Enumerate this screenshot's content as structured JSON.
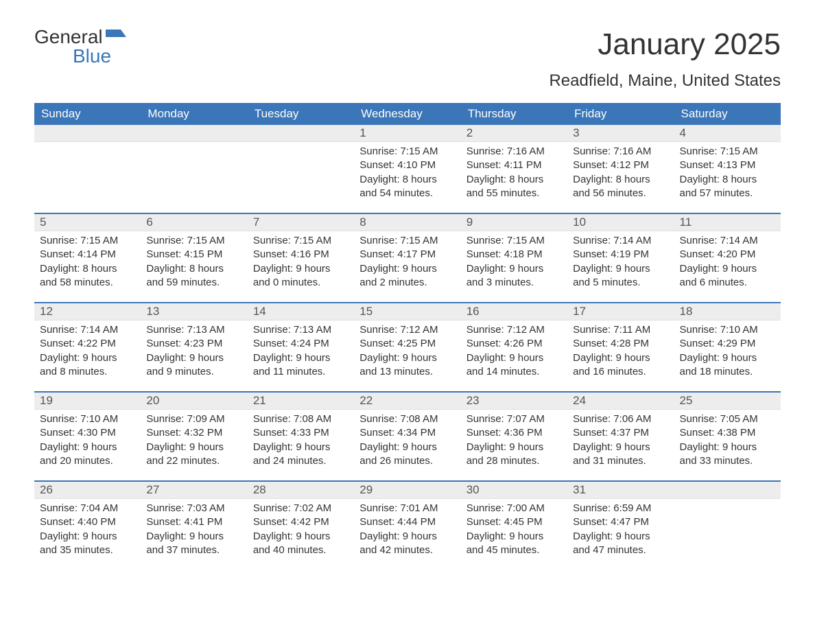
{
  "logo": {
    "word1": "General",
    "word2": "Blue"
  },
  "title": "January 2025",
  "location": "Readfield, Maine, United States",
  "colors": {
    "header_bg": "#3a76b8",
    "header_text": "#ffffff",
    "daynum_bg": "#ededed",
    "text": "#333333",
    "accent": "#3a76b8"
  },
  "weekdays": [
    "Sunday",
    "Monday",
    "Tuesday",
    "Wednesday",
    "Thursday",
    "Friday",
    "Saturday"
  ],
  "weeks": [
    [
      {
        "num": "",
        "sunrise": "",
        "sunset": "",
        "daylight": ""
      },
      {
        "num": "",
        "sunrise": "",
        "sunset": "",
        "daylight": ""
      },
      {
        "num": "",
        "sunrise": "",
        "sunset": "",
        "daylight": ""
      },
      {
        "num": "1",
        "sunrise": "Sunrise: 7:15 AM",
        "sunset": "Sunset: 4:10 PM",
        "daylight": "Daylight: 8 hours and 54 minutes."
      },
      {
        "num": "2",
        "sunrise": "Sunrise: 7:16 AM",
        "sunset": "Sunset: 4:11 PM",
        "daylight": "Daylight: 8 hours and 55 minutes."
      },
      {
        "num": "3",
        "sunrise": "Sunrise: 7:16 AM",
        "sunset": "Sunset: 4:12 PM",
        "daylight": "Daylight: 8 hours and 56 minutes."
      },
      {
        "num": "4",
        "sunrise": "Sunrise: 7:15 AM",
        "sunset": "Sunset: 4:13 PM",
        "daylight": "Daylight: 8 hours and 57 minutes."
      }
    ],
    [
      {
        "num": "5",
        "sunrise": "Sunrise: 7:15 AM",
        "sunset": "Sunset: 4:14 PM",
        "daylight": "Daylight: 8 hours and 58 minutes."
      },
      {
        "num": "6",
        "sunrise": "Sunrise: 7:15 AM",
        "sunset": "Sunset: 4:15 PM",
        "daylight": "Daylight: 8 hours and 59 minutes."
      },
      {
        "num": "7",
        "sunrise": "Sunrise: 7:15 AM",
        "sunset": "Sunset: 4:16 PM",
        "daylight": "Daylight: 9 hours and 0 minutes."
      },
      {
        "num": "8",
        "sunrise": "Sunrise: 7:15 AM",
        "sunset": "Sunset: 4:17 PM",
        "daylight": "Daylight: 9 hours and 2 minutes."
      },
      {
        "num": "9",
        "sunrise": "Sunrise: 7:15 AM",
        "sunset": "Sunset: 4:18 PM",
        "daylight": "Daylight: 9 hours and 3 minutes."
      },
      {
        "num": "10",
        "sunrise": "Sunrise: 7:14 AM",
        "sunset": "Sunset: 4:19 PM",
        "daylight": "Daylight: 9 hours and 5 minutes."
      },
      {
        "num": "11",
        "sunrise": "Sunrise: 7:14 AM",
        "sunset": "Sunset: 4:20 PM",
        "daylight": "Daylight: 9 hours and 6 minutes."
      }
    ],
    [
      {
        "num": "12",
        "sunrise": "Sunrise: 7:14 AM",
        "sunset": "Sunset: 4:22 PM",
        "daylight": "Daylight: 9 hours and 8 minutes."
      },
      {
        "num": "13",
        "sunrise": "Sunrise: 7:13 AM",
        "sunset": "Sunset: 4:23 PM",
        "daylight": "Daylight: 9 hours and 9 minutes."
      },
      {
        "num": "14",
        "sunrise": "Sunrise: 7:13 AM",
        "sunset": "Sunset: 4:24 PM",
        "daylight": "Daylight: 9 hours and 11 minutes."
      },
      {
        "num": "15",
        "sunrise": "Sunrise: 7:12 AM",
        "sunset": "Sunset: 4:25 PM",
        "daylight": "Daylight: 9 hours and 13 minutes."
      },
      {
        "num": "16",
        "sunrise": "Sunrise: 7:12 AM",
        "sunset": "Sunset: 4:26 PM",
        "daylight": "Daylight: 9 hours and 14 minutes."
      },
      {
        "num": "17",
        "sunrise": "Sunrise: 7:11 AM",
        "sunset": "Sunset: 4:28 PM",
        "daylight": "Daylight: 9 hours and 16 minutes."
      },
      {
        "num": "18",
        "sunrise": "Sunrise: 7:10 AM",
        "sunset": "Sunset: 4:29 PM",
        "daylight": "Daylight: 9 hours and 18 minutes."
      }
    ],
    [
      {
        "num": "19",
        "sunrise": "Sunrise: 7:10 AM",
        "sunset": "Sunset: 4:30 PM",
        "daylight": "Daylight: 9 hours and 20 minutes."
      },
      {
        "num": "20",
        "sunrise": "Sunrise: 7:09 AM",
        "sunset": "Sunset: 4:32 PM",
        "daylight": "Daylight: 9 hours and 22 minutes."
      },
      {
        "num": "21",
        "sunrise": "Sunrise: 7:08 AM",
        "sunset": "Sunset: 4:33 PM",
        "daylight": "Daylight: 9 hours and 24 minutes."
      },
      {
        "num": "22",
        "sunrise": "Sunrise: 7:08 AM",
        "sunset": "Sunset: 4:34 PM",
        "daylight": "Daylight: 9 hours and 26 minutes."
      },
      {
        "num": "23",
        "sunrise": "Sunrise: 7:07 AM",
        "sunset": "Sunset: 4:36 PM",
        "daylight": "Daylight: 9 hours and 28 minutes."
      },
      {
        "num": "24",
        "sunrise": "Sunrise: 7:06 AM",
        "sunset": "Sunset: 4:37 PM",
        "daylight": "Daylight: 9 hours and 31 minutes."
      },
      {
        "num": "25",
        "sunrise": "Sunrise: 7:05 AM",
        "sunset": "Sunset: 4:38 PM",
        "daylight": "Daylight: 9 hours and 33 minutes."
      }
    ],
    [
      {
        "num": "26",
        "sunrise": "Sunrise: 7:04 AM",
        "sunset": "Sunset: 4:40 PM",
        "daylight": "Daylight: 9 hours and 35 minutes."
      },
      {
        "num": "27",
        "sunrise": "Sunrise: 7:03 AM",
        "sunset": "Sunset: 4:41 PM",
        "daylight": "Daylight: 9 hours and 37 minutes."
      },
      {
        "num": "28",
        "sunrise": "Sunrise: 7:02 AM",
        "sunset": "Sunset: 4:42 PM",
        "daylight": "Daylight: 9 hours and 40 minutes."
      },
      {
        "num": "29",
        "sunrise": "Sunrise: 7:01 AM",
        "sunset": "Sunset: 4:44 PM",
        "daylight": "Daylight: 9 hours and 42 minutes."
      },
      {
        "num": "30",
        "sunrise": "Sunrise: 7:00 AM",
        "sunset": "Sunset: 4:45 PM",
        "daylight": "Daylight: 9 hours and 45 minutes."
      },
      {
        "num": "31",
        "sunrise": "Sunrise: 6:59 AM",
        "sunset": "Sunset: 4:47 PM",
        "daylight": "Daylight: 9 hours and 47 minutes."
      },
      {
        "num": "",
        "sunrise": "",
        "sunset": "",
        "daylight": ""
      }
    ]
  ]
}
